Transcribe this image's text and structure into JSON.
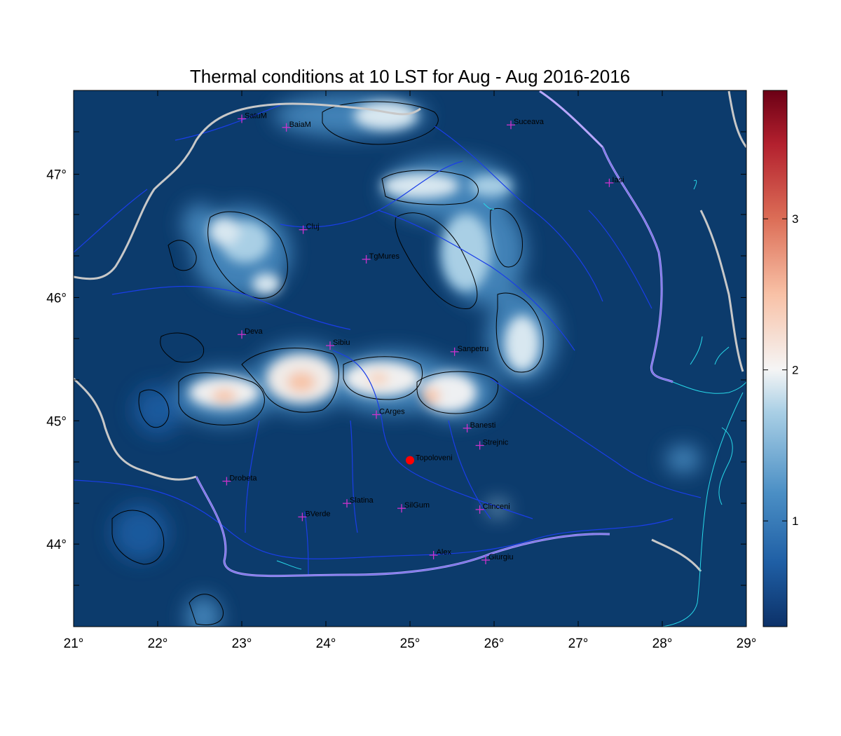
{
  "title": "Thermal conditions at 10 LST for Aug - Aug  2016-2016",
  "x_ticks": [
    "21°",
    "22°",
    "23°",
    "24°",
    "25°",
    "26°",
    "27°",
    "28°",
    "29°"
  ],
  "y_ticks": [
    "44°",
    "45°",
    "46°",
    "47°"
  ],
  "colorbar": {
    "ticks": [
      "1",
      "2",
      "3"
    ],
    "tick_values": [
      1,
      2,
      3
    ],
    "range": [
      0.3,
      3.85
    ],
    "colors": [
      "#0c3168",
      "#1f5fa5",
      "#4b8fc5",
      "#a9cfe5",
      "#f5f5f5",
      "#f8c1a6",
      "#dc6e57",
      "#b3202e",
      "#6b0015"
    ]
  },
  "map": {
    "lon_range": [
      21,
      29
    ],
    "lat_range": [
      43.33,
      47.68
    ],
    "background_color": "#0c3b6c",
    "river_color": "#1a3ee8",
    "border_color": "#c8c8c8",
    "coast_color": "#28d8e8",
    "marker_color": "#cc33cc",
    "highlight_color": "#ff0000"
  },
  "cities": [
    {
      "name": "SatuM",
      "lon": 23.0,
      "lat": 47.45
    },
    {
      "name": "BaiaM",
      "lon": 23.53,
      "lat": 47.38
    },
    {
      "name": "Suceava",
      "lon": 26.2,
      "lat": 47.4
    },
    {
      "name": "Iasi",
      "lon": 27.37,
      "lat": 46.93
    },
    {
      "name": "Cluj",
      "lon": 23.73,
      "lat": 46.55
    },
    {
      "name": "TgMures",
      "lon": 24.48,
      "lat": 46.31
    },
    {
      "name": "Deva",
      "lon": 23.0,
      "lat": 45.7
    },
    {
      "name": "Sibiu",
      "lon": 24.05,
      "lat": 45.61
    },
    {
      "name": "Sanpetru",
      "lon": 25.53,
      "lat": 45.56
    },
    {
      "name": "CArges",
      "lon": 24.6,
      "lat": 45.05
    },
    {
      "name": "Banesti",
      "lon": 25.68,
      "lat": 44.94
    },
    {
      "name": "Strejnic",
      "lon": 25.83,
      "lat": 44.8
    },
    {
      "name": "Drobeta",
      "lon": 22.82,
      "lat": 44.51
    },
    {
      "name": "Slatina",
      "lon": 24.25,
      "lat": 44.33
    },
    {
      "name": "SilGum",
      "lon": 24.9,
      "lat": 44.29
    },
    {
      "name": "Clinceni",
      "lon": 25.83,
      "lat": 44.28
    },
    {
      "name": "BVerde",
      "lon": 23.72,
      "lat": 44.22
    },
    {
      "name": "Alex",
      "lon": 25.28,
      "lat": 43.91
    },
    {
      "name": "Giurgiu",
      "lon": 25.9,
      "lat": 43.87
    }
  ],
  "highlight": {
    "name": "Topoloveni",
    "lon": 25.0,
    "lat": 44.68
  }
}
